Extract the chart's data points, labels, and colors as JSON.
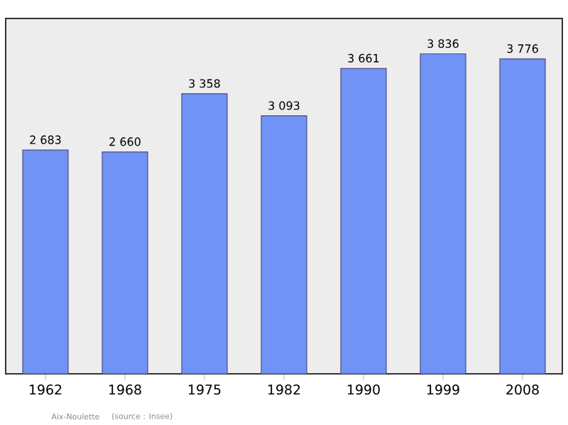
{
  "chart_data": {
    "type": "bar",
    "categories": [
      "1962",
      "1968",
      "1975",
      "1982",
      "1990",
      "1999",
      "2008"
    ],
    "values": [
      2683,
      2660,
      3358,
      3093,
      3661,
      3836,
      3776
    ],
    "value_labels": [
      "2 683",
      "2 660",
      "3 358",
      "3 093",
      "3 661",
      "3 836",
      "3 776"
    ],
    "color": "#7093f5",
    "ylim": [
      0,
      4260
    ],
    "tick_labels": "x",
    "annotations": [
      "Aix-Noulette",
      "(source : Insee)"
    ]
  }
}
